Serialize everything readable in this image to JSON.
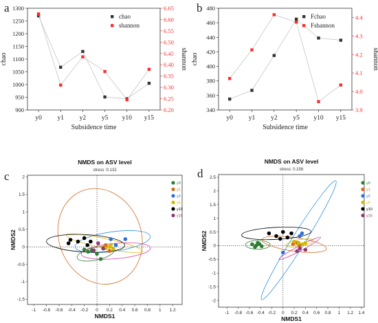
{
  "colors": {
    "black_series": "#333333",
    "red_series": "#ff2a2a",
    "connector": "#bcbcbc",
    "group_colors": {
      "y0": "#2e7d32",
      "y1": "#d2691e",
      "y2": "#2f6fd6",
      "y5": "#d4b800",
      "y10": "#000000",
      "y15": "#8e3a6e"
    },
    "ellipse_colors": {
      "y0": "#2e7d32",
      "y1": "#d2691e",
      "y2": "#2f8fe0",
      "y5": "#d4b800",
      "y10": "#000000",
      "y15": "#d63aa0"
    }
  },
  "chart_data": [
    {
      "panel_label": "a",
      "type": "line",
      "xlabel": "Subsidence time",
      "categories": [
        "y0",
        "y1",
        "y2",
        "y5",
        "y10",
        "y15"
      ],
      "y_left": {
        "label": "chao",
        "ylim": [
          900,
          1300
        ],
        "ticks": [
          900,
          950,
          1000,
          1050,
          1100,
          1150,
          1200,
          1250,
          1300
        ]
      },
      "y_right": {
        "label": "shannon",
        "ylim": [
          6.2,
          6.65
        ],
        "ticks": [
          "6.20",
          "6.25",
          "6.30",
          "6.35",
          "6.40",
          "6.45",
          "6.50",
          "6.55",
          "6.60",
          "6.65"
        ]
      },
      "series": [
        {
          "name": "chao",
          "axis": "left",
          "color": "#333333",
          "values": [
            1270,
            1068,
            1130,
            951,
            944,
            1005
          ]
        },
        {
          "name": "shannon",
          "axis": "right",
          "color": "#ff2a2a",
          "values": [
            6.625,
            6.31,
            6.435,
            6.37,
            6.245,
            6.38
          ]
        }
      ],
      "legend": "top-right"
    },
    {
      "panel_label": "b",
      "type": "line",
      "xlabel": "Subsidence time",
      "categories": [
        "y0",
        "y1",
        "y2",
        "y5",
        "y10",
        "y15"
      ],
      "y_left": {
        "label": "chao",
        "ylim": [
          340,
          480
        ],
        "ticks": [
          340,
          360,
          380,
          400,
          420,
          440,
          460,
          480
        ]
      },
      "y_right": {
        "label": "shannon",
        "ylim": [
          3.9,
          4.45
        ],
        "ticks": [
          "3.9",
          "4.0",
          "4.1",
          "4.2",
          "4.3",
          "4.4"
        ]
      },
      "series": [
        {
          "name": "Fchao",
          "axis": "left",
          "color": "#333333",
          "values": [
            355,
            367,
            415,
            465,
            439,
            436
          ]
        },
        {
          "name": "Fshannon",
          "axis": "right",
          "color": "#ff2a2a",
          "values": [
            4.07,
            4.225,
            4.415,
            4.375,
            3.945,
            4.035
          ]
        }
      ],
      "legend": "top-right"
    },
    {
      "panel_label": "c",
      "type": "scatter",
      "title": "NMDS on ASV level",
      "subtitle": "stress :0.132",
      "xlabel": "NMDS1",
      "ylabel": "NMDS2",
      "xlim": [
        -1.1,
        1.35
      ],
      "ylim": [
        -1.65,
        2.05
      ],
      "xticks": [
        "-1",
        "-0.8",
        "-0.6",
        "-0.4",
        "-0.2",
        "0",
        "0.2",
        "0.4",
        "0.6",
        "0.8",
        "1",
        "1.2"
      ],
      "yticks": [
        "-1.5",
        "-1",
        "-0.5",
        "0",
        "0.5",
        "1",
        "1.5",
        "2"
      ],
      "legend_entries": [
        "y0",
        "y1",
        "y2",
        "y5",
        "y10",
        "y15"
      ],
      "groups": [
        {
          "name": "y0",
          "points": [
            [
              -0.08,
              -0.1
            ],
            [
              -0.14,
              -0.14
            ],
            [
              0.0,
              -0.2
            ],
            [
              0.06,
              -0.35
            ],
            [
              -0.2,
              -0.08
            ]
          ],
          "ellipse": {
            "cx": -0.02,
            "cy": -0.2,
            "rx": 0.3,
            "ry": 0.18,
            "angle": -12
          }
        },
        {
          "name": "y1",
          "points": [
            [
              0.1,
              -0.02
            ],
            [
              0.2,
              -0.12
            ],
            [
              0.14,
              0.05
            ]
          ],
          "ellipse": {
            "cx": 0.05,
            "cy": 0.3,
            "rx": 0.65,
            "ry": 1.4,
            "angle": -22
          }
        },
        {
          "name": "y2",
          "points": [
            [
              0.22,
              0.22
            ],
            [
              0.45,
              0.22
            ],
            [
              0.3,
              0.05
            ]
          ],
          "ellipse": {
            "cx": 0.25,
            "cy": 0.15,
            "rx": 0.6,
            "ry": 0.28,
            "angle": -8
          }
        },
        {
          "name": "y5",
          "points": [
            [
              0.2,
              0.0
            ],
            [
              0.26,
              -0.06
            ],
            [
              0.14,
              -0.04
            ],
            [
              0.22,
              0.06
            ]
          ],
          "ellipse": {
            "cx": 0.12,
            "cy": 0.1,
            "rx": 0.62,
            "ry": 0.14,
            "angle": 12
          }
        },
        {
          "name": "y10",
          "points": [
            [
              -0.42,
              0.2
            ],
            [
              -0.45,
              0.1
            ],
            [
              -0.3,
              0.15
            ],
            [
              -0.2,
              0.25
            ],
            [
              -0.1,
              0.15
            ],
            [
              -0.15,
              0.05
            ]
          ],
          "ellipse": {
            "cx": -0.18,
            "cy": 0.1,
            "rx": 0.62,
            "ry": 0.25,
            "angle": 3
          }
        },
        {
          "name": "y15",
          "points": [
            [
              0.02,
              0.1
            ],
            [
              0.1,
              -0.05
            ],
            [
              -0.05,
              -0.1
            ]
          ],
          "ellipse": {
            "cx": 0.3,
            "cy": -0.12,
            "rx": 0.55,
            "ry": 0.22,
            "angle": -5
          }
        }
      ]
    },
    {
      "panel_label": "d",
      "type": "scatter",
      "title": "NMDS on ASV level",
      "subtitle": "stress: 0.158",
      "xlabel": "NMDS1",
      "ylabel": "NMDS2",
      "xlim": [
        -1.15,
        1.45
      ],
      "ylim": [
        -2.25,
        2.6
      ],
      "xticks": [
        "-1",
        "-0.8",
        "-0.6",
        "-0.4",
        "-0.2",
        "0",
        "0.2",
        "0.4",
        "0.6",
        "0.8",
        "1",
        "1.2",
        "1.4"
      ],
      "yticks": [
        "-2",
        "-1.5",
        "-1",
        "-0.5",
        "0",
        "0.5",
        "1",
        "1.5",
        "2",
        "2.5"
      ],
      "legend_entries": [
        "y0",
        "y1",
        "y2",
        "y5",
        "y10",
        "y15"
      ],
      "groups": [
        {
          "name": "y0",
          "points": [
            [
              -0.55,
              0.05
            ],
            [
              -0.48,
              0.0
            ],
            [
              -0.42,
              0.06
            ],
            [
              -0.5,
              -0.05
            ],
            [
              -0.38,
              -0.02
            ],
            [
              -0.45,
              0.1
            ]
          ],
          "ellipse": {
            "cx": -0.45,
            "cy": 0.03,
            "rx": 0.22,
            "ry": 0.16,
            "angle": 0
          }
        },
        {
          "name": "y1",
          "points": [
            [
              0.25,
              0.1
            ],
            [
              0.3,
              0.02
            ],
            [
              0.18,
              0.06
            ]
          ],
          "ellipse": {
            "cx": 0.2,
            "cy": 0.05,
            "rx": 0.58,
            "ry": 0.25,
            "angle": 8
          }
        },
        {
          "name": "y2",
          "points": [
            [
              0.3,
              0.35
            ],
            [
              0.34,
              0.45
            ],
            [
              0.0,
              -0.25
            ]
          ],
          "ellipse": {
            "cx": 0.28,
            "cy": 0.2,
            "rx": 1.25,
            "ry": 0.24,
            "angle": -58
          }
        },
        {
          "name": "y5",
          "points": [
            [
              0.2,
              0.15
            ],
            [
              0.28,
              0.1
            ],
            [
              0.35,
              0.05
            ],
            [
              0.4,
              0.1
            ]
          ],
          "ellipse": {
            "cx": 0.3,
            "cy": 0.1,
            "rx": 0.25,
            "ry": 0.12,
            "angle": -10
          }
        },
        {
          "name": "y10",
          "points": [
            [
              -0.25,
              0.45
            ],
            [
              -0.12,
              0.35
            ],
            [
              0.0,
              0.5
            ],
            [
              0.08,
              0.3
            ],
            [
              0.15,
              0.45
            ],
            [
              -0.05,
              0.25
            ]
          ],
          "ellipse": {
            "cx": -0.12,
            "cy": 0.45,
            "rx": 0.62,
            "ry": 0.22,
            "angle": -3
          }
        },
        {
          "name": "y15",
          "points": [
            [
              0.25,
              -0.2
            ],
            [
              0.3,
              -0.1
            ],
            [
              0.4,
              -0.15
            ]
          ],
          "ellipse": {
            "cx": 0.3,
            "cy": -0.1,
            "rx": 0.42,
            "ry": 0.09,
            "angle": -28
          }
        }
      ]
    }
  ]
}
